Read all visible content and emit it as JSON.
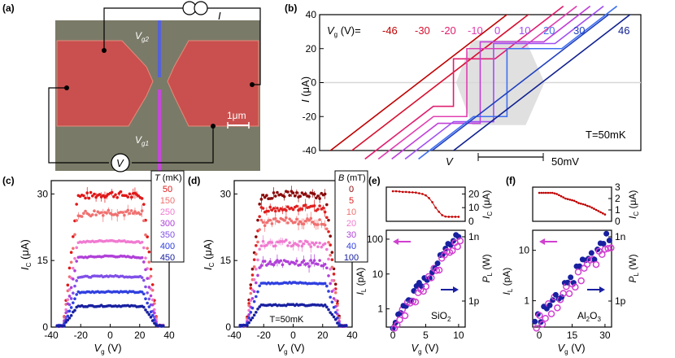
{
  "panels": {
    "a": "(a)",
    "b": "(b)",
    "c": "(c)",
    "d": "(d)",
    "e": "(e)",
    "f": "(f)"
  },
  "colors": {
    "leads": "#c94b4b",
    "substrate": "#7b7b6a",
    "gate1": "#c24ad6",
    "gate2": "#5563d6",
    "c_series": [
      "#e01818",
      "#f07070",
      "#f07ad0",
      "#b040d8",
      "#8050e8",
      "#3040e0",
      "#1820a0"
    ],
    "d_series": [
      "#8b0a0a",
      "#e02020",
      "#f07070",
      "#f07ad0",
      "#b040d8",
      "#3040e0",
      "#1820a0"
    ],
    "b_curves": [
      "#c00000",
      "#d81030",
      "#e02070",
      "#e040b0",
      "#c040d8",
      "#a050f0",
      "#4070f0",
      "#2040c0",
      "#102090"
    ],
    "IL": "#1820a0",
    "PL": "#d040d0",
    "Ic": "#c00000"
  },
  "device": {
    "labels": {
      "I": "I",
      "V": "V",
      "vg1": "V",
      "vg1_sub": "g1",
      "vg2": "V",
      "vg2_sub": "g2",
      "scale": "1μm"
    }
  },
  "chart_data": [
    {
      "panel": "b",
      "type": "line",
      "xlim": [
        -60,
        60
      ],
      "ylim": [
        -40,
        40
      ],
      "yticks": [
        -40,
        -20,
        0,
        20,
        40
      ],
      "ylabel_main": "I",
      "ylabel_unit": " (μA)",
      "legend_prefix": "V",
      "legend_prefix_sub": "g",
      "legend_prefix_rest": " (V)=",
      "gate_values": [
        "-46",
        "-30",
        "-20",
        "-10",
        "0",
        "10",
        "20",
        "30",
        "46"
      ],
      "offsets": [
        -46,
        -30,
        -20,
        -10,
        0,
        10,
        20,
        30,
        46
      ],
      "switching_currents": [
        0,
        0,
        14,
        20,
        24,
        23,
        20,
        0,
        0
      ],
      "slope": 0.85,
      "xlabel": "V",
      "scalebar_label": "50mV",
      "temperature_label": "T=50mK"
    },
    {
      "panel": "c",
      "type": "scatter",
      "xlim": [
        -40,
        40
      ],
      "ylim": [
        0,
        33
      ],
      "xticks": [
        -40,
        -20,
        0,
        20,
        40
      ],
      "yticks": [
        0,
        15,
        30
      ],
      "xlabel_main": "V",
      "xlabel_sub": "g",
      "xlabel_unit": " (V)",
      "ylabel_main": "I",
      "ylabel_sub": "C",
      "ylabel_unit": " (μA)",
      "legend_title": "T (mK)",
      "series": [
        {
          "name": "50",
          "plateau": 30,
          "edge": 22,
          "noisy": true
        },
        {
          "name": "150",
          "plateau": 26,
          "edge": 22,
          "noisy": true
        },
        {
          "name": "250",
          "plateau": 19.5,
          "edge": 22,
          "noisy": false
        },
        {
          "name": "300",
          "plateau": 16,
          "edge": 22,
          "noisy": false
        },
        {
          "name": "350",
          "plateau": 11.5,
          "edge": 22,
          "noisy": false
        },
        {
          "name": "400",
          "plateau": 8,
          "edge": 22,
          "noisy": false
        },
        {
          "name": "450",
          "plateau": 4.8,
          "edge": 22,
          "noisy": false
        }
      ]
    },
    {
      "panel": "d",
      "type": "scatter",
      "xlim": [
        -40,
        40
      ],
      "ylim": [
        0,
        33
      ],
      "xticks": [
        -40,
        -20,
        0,
        20,
        40
      ],
      "yticks": [
        0,
        15,
        30
      ],
      "xlabel_main": "V",
      "xlabel_sub": "g",
      "xlabel_unit": " (V)",
      "ylabel_main": "I",
      "ylabel_sub": "C",
      "ylabel_unit": " (μA)",
      "legend_title": "B (mT)",
      "inset_label": "T=50mK",
      "series": [
        {
          "name": "0",
          "plateau": 30,
          "edge": 22,
          "noisy": true
        },
        {
          "name": "5",
          "plateau": 27,
          "edge": 22,
          "noisy": true
        },
        {
          "name": "10",
          "plateau": 24,
          "edge": 22,
          "noisy": true
        },
        {
          "name": "20",
          "plateau": 19,
          "edge": 22,
          "noisy": true
        },
        {
          "name": "30",
          "plateau": 14.5,
          "edge": 22,
          "noisy": true
        },
        {
          "name": "40",
          "plateau": 10,
          "edge": 22,
          "noisy": false
        },
        {
          "name": "100",
          "plateau": 5,
          "edge": 22,
          "noisy": false
        }
      ]
    },
    {
      "panel": "e",
      "type": "scatter",
      "material": "SiO",
      "material_sub": "2",
      "top": {
        "xlim": [
          -1,
          11
        ],
        "ylim": [
          0,
          25
        ],
        "yticks": [
          0,
          10,
          20
        ],
        "ylabel": "I",
        "ylabel_sub": "C",
        "ylabel_unit": " (μA)",
        "x": [
          0,
          0.5,
          1,
          1.5,
          2,
          2.5,
          3,
          3.5,
          4,
          4.5,
          5,
          5.5,
          6,
          6.5,
          7,
          7.5,
          8,
          8.5,
          9,
          9.5,
          10
        ],
        "y": [
          22,
          22,
          21.8,
          21.5,
          21.5,
          21.3,
          21.2,
          21,
          20.5,
          20,
          19,
          17,
          14,
          10,
          7,
          4.5,
          3.5,
          3.3,
          3.3,
          3.3,
          3.3
        ]
      },
      "bottom": {
        "xlim": [
          -1,
          11
        ],
        "xticks": [
          0,
          5,
          10
        ],
        "xlabel": "V",
        "xlabel_sub": "g",
        "xlabel_unit": " (V)",
        "ylabel": "I",
        "ylabel_sub": "L",
        "ylabel_unit": " (pA)",
        "ylog": [
          0.3,
          180
        ],
        "yticks": [
          "1",
          "10",
          "100"
        ],
        "right_label": "P",
        "right_sub": "L",
        "right_unit": " (W)",
        "right_ticks": [
          "1n",
          "1p"
        ]
      }
    },
    {
      "panel": "f",
      "type": "scatter",
      "material": "Al",
      "material_sub": "2",
      "material_rest": "O",
      "material_sub2": "3",
      "top": {
        "xlim": [
          -3,
          33
        ],
        "ylim": [
          0,
          3
        ],
        "yticks": [
          0,
          1,
          2,
          3
        ],
        "ylabel": "I",
        "ylabel_sub": "C",
        "ylabel_unit": " (μA)",
        "x": [
          0,
          1,
          2,
          3,
          4,
          5,
          6,
          7,
          8,
          9,
          10,
          11,
          12,
          13,
          14,
          15,
          16,
          17,
          18,
          19,
          20,
          21,
          22,
          23,
          24,
          25,
          26,
          27,
          28,
          29,
          30
        ],
        "y": [
          2.5,
          2.5,
          2.5,
          2.5,
          2.5,
          2.5,
          2.5,
          2.45,
          2.4,
          2.3,
          2.2,
          2.1,
          2.0,
          1.95,
          1.9,
          1.85,
          1.8,
          1.7,
          1.6,
          1.55,
          1.5,
          1.45,
          1.35,
          1.3,
          1.2,
          1.1,
          1.0,
          0.9,
          0.8,
          0.7,
          0.6
        ]
      },
      "bottom": {
        "xlim": [
          -3,
          33
        ],
        "xticks": [
          0,
          15,
          30
        ],
        "xlabel": "V",
        "xlabel_sub": "g",
        "xlabel_unit": " (V)",
        "ylabel": "I",
        "ylabel_sub": "L",
        "ylabel_unit": " (pA)",
        "ylog": [
          0.3,
          25
        ],
        "yticks": [
          "1",
          "10"
        ],
        "right_label": "P",
        "right_sub": "L",
        "right_unit": " (W)",
        "right_ticks": [
          "1n",
          "1p"
        ]
      }
    }
  ]
}
